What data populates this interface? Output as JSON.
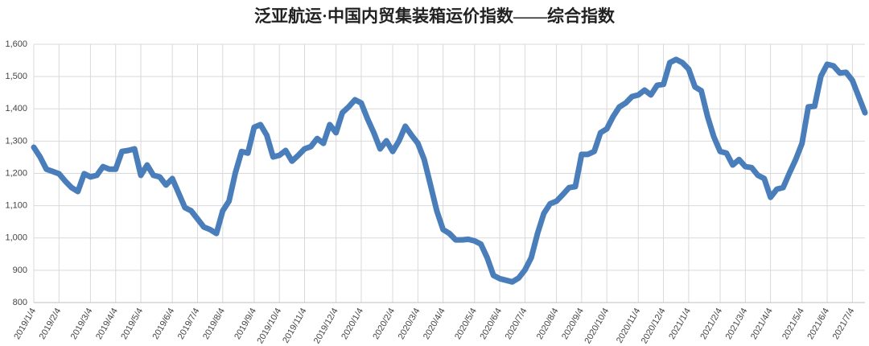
{
  "chart_data": {
    "type": "line",
    "title": "泛亚航运·中国内贸集装箱运价指数——综合指数",
    "categories": [
      "2019/1/4",
      null,
      null,
      null,
      "2019/2/4",
      null,
      null,
      null,
      null,
      "2019/3/4",
      null,
      null,
      null,
      "2019/4/4",
      null,
      null,
      null,
      "2019/5/4",
      null,
      null,
      null,
      null,
      "2019/6/4",
      null,
      null,
      null,
      "2019/7/4",
      null,
      null,
      null,
      "2019/8/4",
      null,
      null,
      null,
      null,
      "2019/9/4",
      null,
      null,
      null,
      "2019/10/4",
      null,
      null,
      null,
      "2019/11/4",
      null,
      null,
      null,
      null,
      "2019/12/4",
      null,
      null,
      null,
      "2020/1/4",
      null,
      null,
      null,
      null,
      "2020/2/4",
      null,
      null,
      null,
      "2020/3/4",
      null,
      null,
      null,
      "2020/4/4",
      null,
      null,
      null,
      null,
      "2020/5/4",
      null,
      null,
      null,
      "2020/6/4",
      null,
      null,
      null,
      "2020/7/4",
      null,
      null,
      null,
      null,
      "2020/8/4",
      null,
      null,
      null,
      "2020/9/4",
      null,
      null,
      null,
      "2020/10/4",
      null,
      null,
      null,
      null,
      "2020/11/4",
      null,
      null,
      null,
      "2020/12/4",
      null,
      null,
      null,
      "2021/1/4",
      null,
      null,
      null,
      null,
      "2021/2/4",
      null,
      null,
      null,
      "2021/3/4",
      null,
      null,
      null,
      "2021/4/4",
      null,
      null,
      null,
      null,
      "2021/5/4",
      null,
      null,
      null,
      "2021/6/4",
      null,
      null,
      null,
      "2021/7/4",
      null,
      null
    ],
    "values": [
      1281,
      1251,
      1213,
      1206,
      1199,
      1176,
      1156,
      1144,
      1199,
      1189,
      1194,
      1221,
      1213,
      1213,
      1268,
      1271,
      1276,
      1194,
      1226,
      1194,
      1189,
      1164,
      1184,
      1139,
      1094,
      1084,
      1059,
      1034,
      1026,
      1014,
      1084,
      1114,
      1201,
      1268,
      1263,
      1343,
      1351,
      1318,
      1251,
      1256,
      1271,
      1238,
      1256,
      1276,
      1283,
      1308,
      1293,
      1351,
      1326,
      1388,
      1406,
      1428,
      1418,
      1369,
      1326,
      1276,
      1301,
      1268,
      1301,
      1346,
      1318,
      1293,
      1243,
      1164,
      1084,
      1026,
      1014,
      994,
      994,
      996,
      991,
      981,
      939,
      884,
      874,
      869,
      864,
      876,
      901,
      939,
      1014,
      1076,
      1106,
      1114,
      1134,
      1156,
      1159,
      1259,
      1259,
      1268,
      1326,
      1338,
      1376,
      1406,
      1418,
      1438,
      1443,
      1458,
      1443,
      1473,
      1476,
      1543,
      1553,
      1543,
      1523,
      1468,
      1456,
      1376,
      1313,
      1268,
      1263,
      1226,
      1243,
      1221,
      1218,
      1194,
      1184,
      1126,
      1151,
      1156,
      1201,
      1243,
      1293,
      1406,
      1408,
      1501,
      1538,
      1533,
      1511,
      1513,
      1488,
      1438,
      1388
    ],
    "color": "#4a7ebb",
    "ylim": [
      800,
      1600
    ],
    "yticks": [
      800,
      900,
      {
        "value": 1000,
        "label": "1,000"
      },
      {
        "value": 1100,
        "label": "1,100"
      },
      {
        "value": 1200,
        "label": "1,200"
      },
      {
        "value": 1300,
        "label": "1,300"
      },
      {
        "value": 1400,
        "label": "1,400"
      },
      {
        "value": 1500,
        "label": "1,500"
      },
      {
        "value": 1600,
        "label": "1,600"
      }
    ],
    "grid": true
  }
}
